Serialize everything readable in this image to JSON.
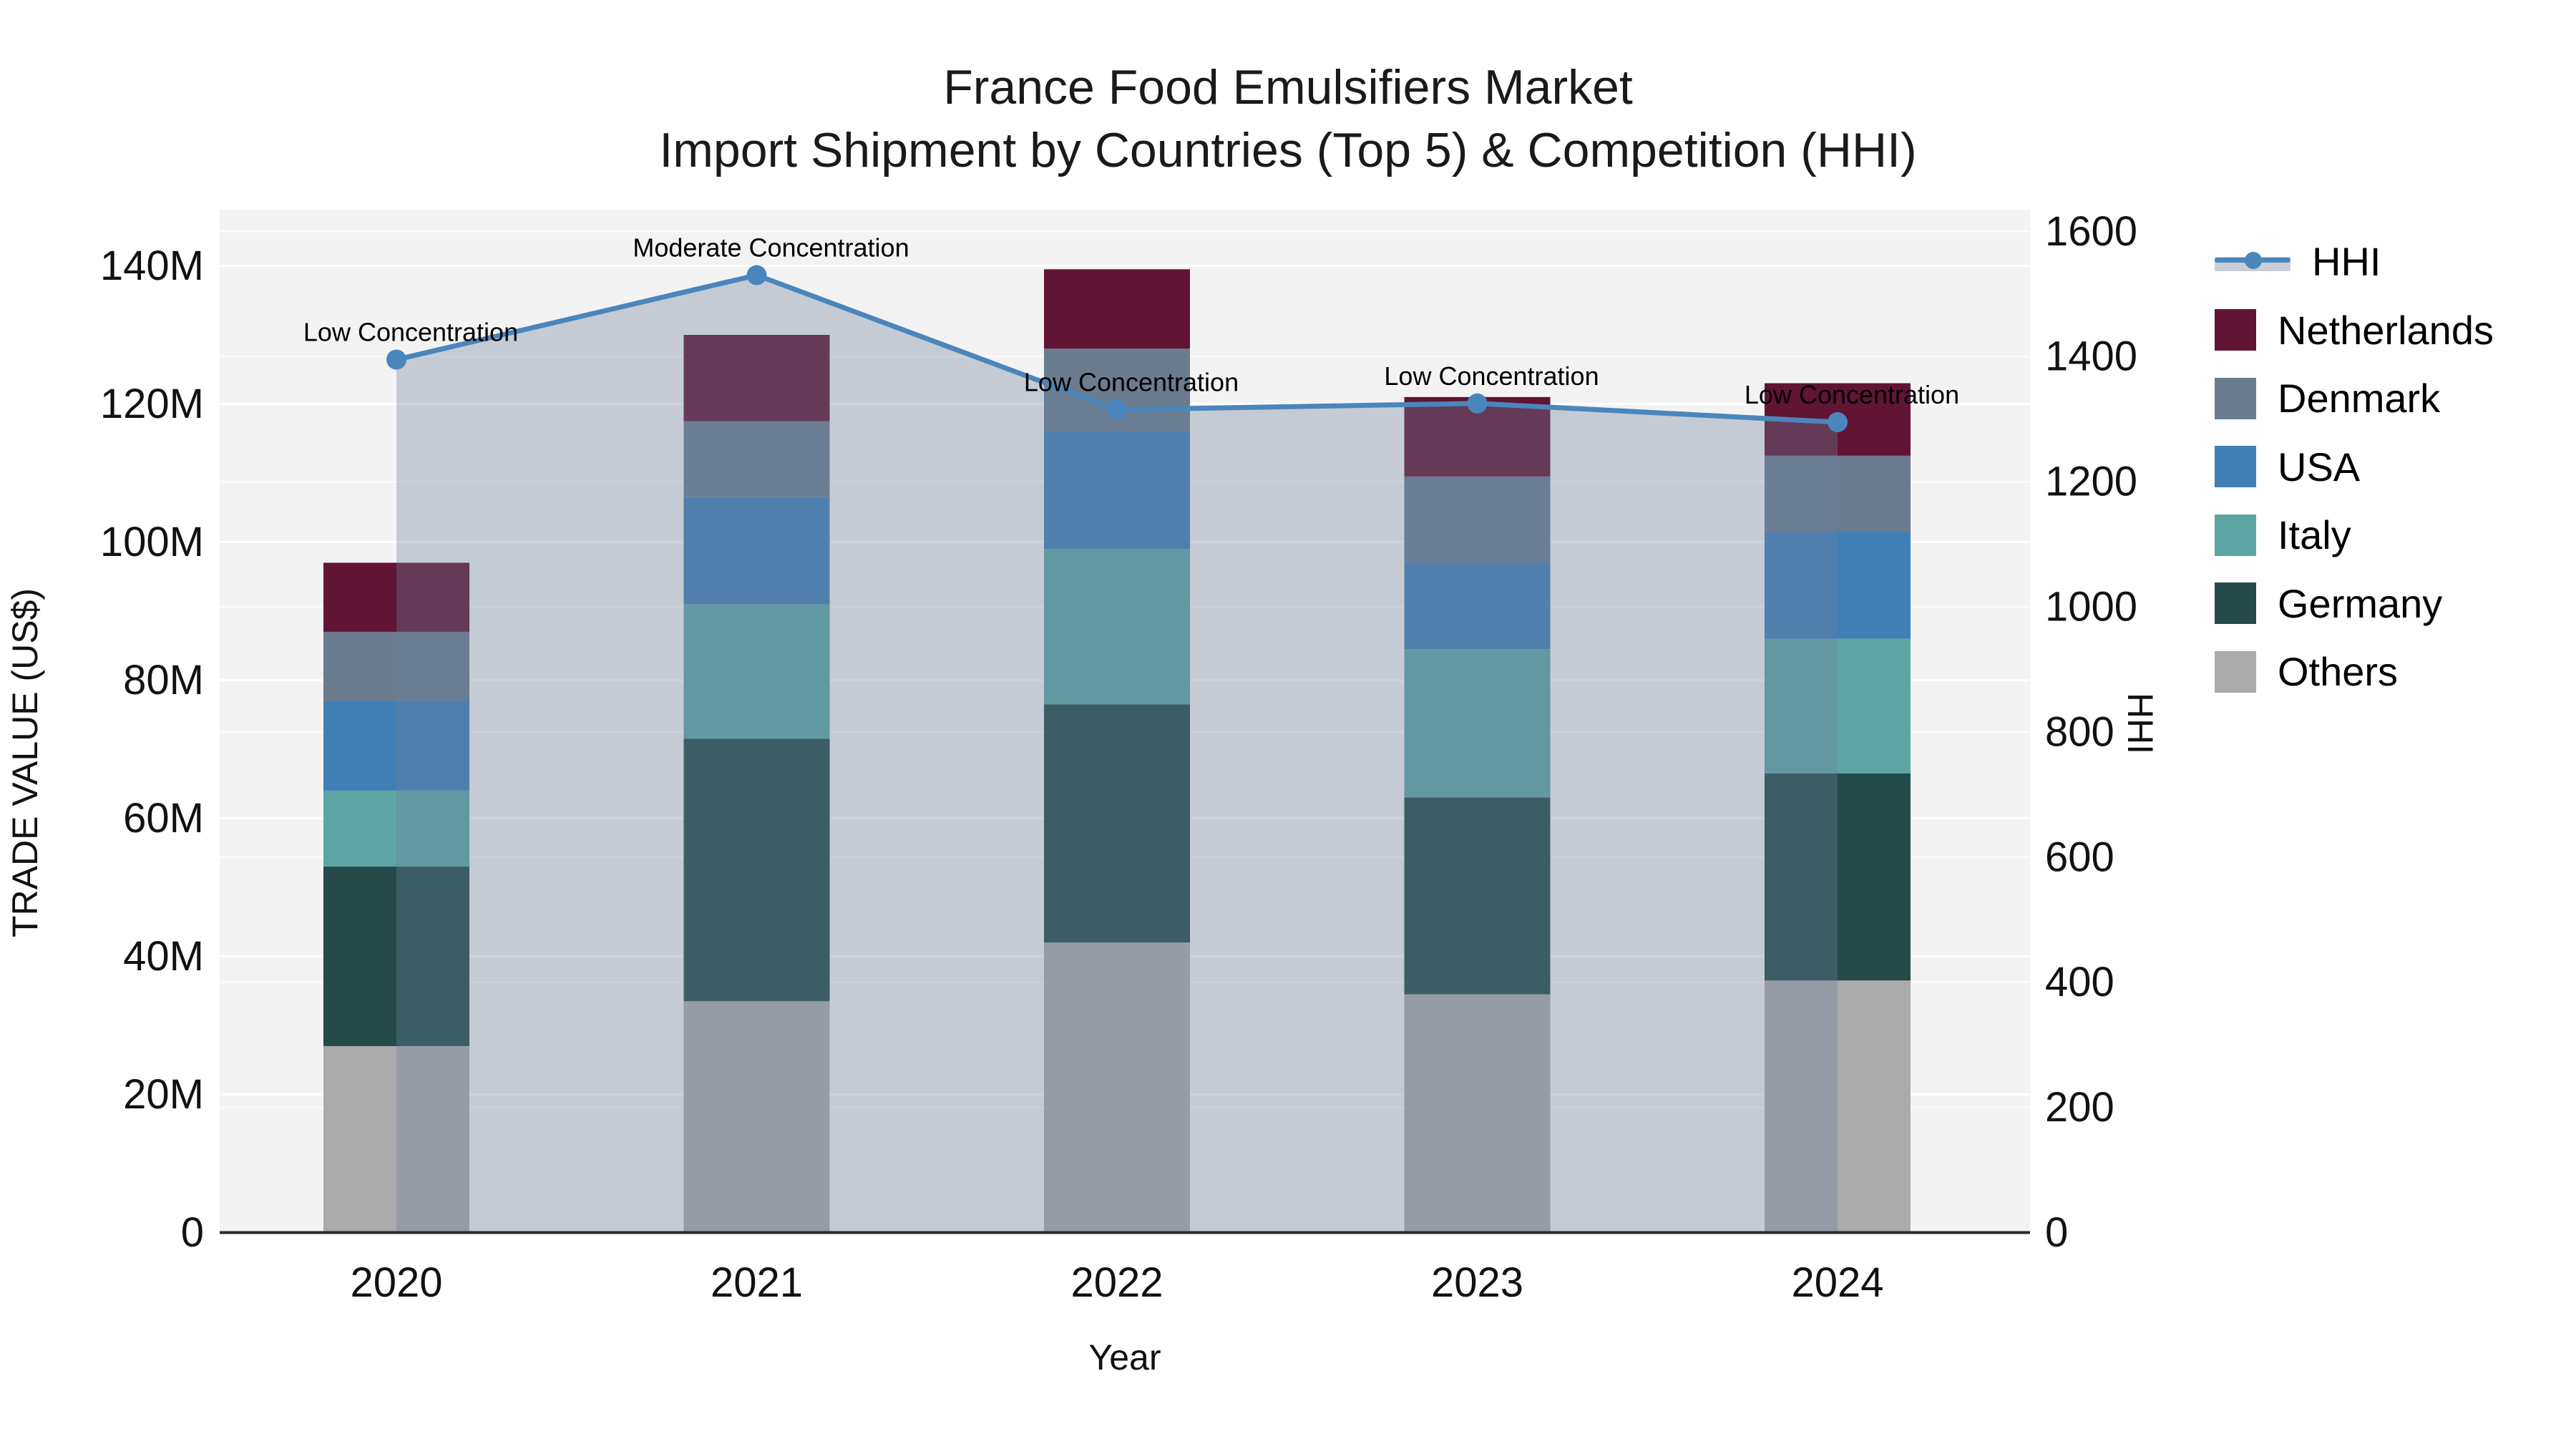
{
  "title": {
    "line1": "France Food Emulsifiers Market",
    "line2": "Import Shipment by Countries (Top 5) & Competition (HHI)"
  },
  "axes": {
    "x_title": "Year",
    "y_left_title": "TRADE VALUE (US$)",
    "y_right_title": "HHI",
    "y_left_tick_labels": [
      "0",
      "20M",
      "40M",
      "60M",
      "80M",
      "100M",
      "120M",
      "140M"
    ],
    "y_left_tick_values": [
      0,
      20,
      40,
      60,
      80,
      100,
      120,
      140
    ],
    "y_right_tick_labels": [
      "0",
      "200",
      "400",
      "600",
      "800",
      "1000",
      "1200",
      "1400",
      "1600"
    ],
    "y_right_tick_values": [
      0,
      200,
      400,
      600,
      800,
      1000,
      1200,
      1400,
      1600
    ]
  },
  "legend": [
    {
      "label": "HHI",
      "type": "line",
      "color": "#4A86BC",
      "band": "#C9CEDA"
    },
    {
      "label": "Netherlands",
      "type": "swatch",
      "color": "#611434"
    },
    {
      "label": "Denmark",
      "type": "swatch",
      "color": "#6B7C8E"
    },
    {
      "label": "USA",
      "type": "swatch",
      "color": "#417FB7"
    },
    {
      "label": "Italy",
      "type": "swatch",
      "color": "#5DA5A2"
    },
    {
      "label": "Germany",
      "type": "swatch",
      "color": "#244B49"
    },
    {
      "label": "Others",
      "type": "swatch",
      "color": "#ABABAB"
    }
  ],
  "chart_data": {
    "type": "combo: stacked-bar + line (secondary axis)",
    "title": "France Food Emulsifiers Market — Import Shipment by Countries (Top 5) & Competition (HHI)",
    "categories": [
      "2020",
      "2021",
      "2022",
      "2023",
      "2024"
    ],
    "bar_unit": "million US$",
    "series": [
      {
        "name": "Others",
        "color": "#ABABAB",
        "values": [
          27.0,
          33.5,
          42.0,
          34.5,
          36.5
        ]
      },
      {
        "name": "Germany",
        "color": "#244B49",
        "values": [
          26.0,
          38.0,
          34.5,
          28.5,
          30.0
        ]
      },
      {
        "name": "Italy",
        "color": "#5DA5A2",
        "values": [
          11.0,
          19.5,
          22.5,
          21.5,
          19.5
        ]
      },
      {
        "name": "USA",
        "color": "#417FB7",
        "values": [
          13.0,
          15.5,
          17.0,
          12.5,
          15.5
        ]
      },
      {
        "name": "Denmark",
        "color": "#6B7C8E",
        "values": [
          10.0,
          11.0,
          12.0,
          12.5,
          11.0
        ]
      },
      {
        "name": "Netherlands",
        "color": "#611434",
        "values": [
          10.0,
          12.5,
          11.5,
          11.5,
          10.5
        ]
      }
    ],
    "stack_totals": [
      97.0,
      130.0,
      139.5,
      121.0,
      123.0
    ],
    "line_series": {
      "name": "HHI",
      "axis": "right",
      "color": "#4A86BC",
      "area_fill": "rgba(110,130,155,0.35)",
      "values": [
        1395,
        1530,
        1315,
        1325,
        1295
      ]
    },
    "annotations": [
      {
        "category": "2020",
        "text": "Low Concentration"
      },
      {
        "category": "2021",
        "text": "Moderate Concentration"
      },
      {
        "category": "2022",
        "text": "Low Concentration"
      },
      {
        "category": "2023",
        "text": "Low Concentration"
      },
      {
        "category": "2024",
        "text": "Low Concentration"
      }
    ],
    "xlabel": "Year",
    "ylabel_left": "TRADE VALUE (US$)",
    "ylabel_right": "HHI",
    "ylim_left": [
      0,
      148
    ],
    "ylim_right": [
      0,
      1635
    ],
    "grid": true,
    "legend_position": "right"
  }
}
